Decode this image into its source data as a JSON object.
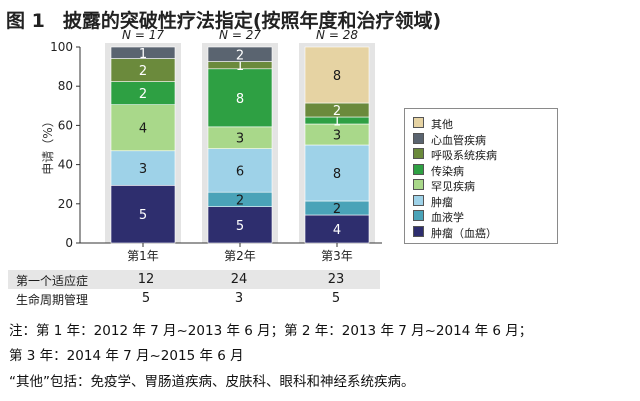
{
  "figure": {
    "label": "图 1",
    "title": "披露的突破性疗法指定(按照年度和治疗领域)"
  },
  "chart_data": {
    "type": "bar",
    "stacked": true,
    "normalized_percent": true,
    "categories": [
      "第1年",
      "第2年",
      "第3年"
    ],
    "n_labels": [
      "N = 17",
      "N = 27",
      "N = 28"
    ],
    "totals": [
      17,
      27,
      28
    ],
    "ylabel": "申请（%）",
    "ylim": [
      0,
      100
    ],
    "yticks": [
      0,
      20,
      40,
      60,
      80,
      100
    ],
    "series": [
      {
        "name": "肿瘤（血癌）",
        "color": "#2e2e6e",
        "values": [
          5,
          5,
          4
        ]
      },
      {
        "name": "血液学",
        "color": "#4aa3b8",
        "values": [
          0,
          2,
          2
        ]
      },
      {
        "name": "肿瘤",
        "color": "#9ed2e8",
        "values": [
          3,
          6,
          8
        ]
      },
      {
        "name": "罕见疾病",
        "color": "#a9d88a",
        "values": [
          4,
          3,
          3
        ]
      },
      {
        "name": "传染病",
        "color": "#2ea043",
        "values": [
          2,
          8,
          1
        ]
      },
      {
        "name": "呼吸系统疾病",
        "color": "#6b8a3c",
        "values": [
          2,
          1,
          2
        ]
      },
      {
        "name": "心血管疾病",
        "color": "#5a6470",
        "values": [
          1,
          2,
          0
        ]
      },
      {
        "name": "其他",
        "color": "#e6d3a3",
        "values": [
          0,
          0,
          8
        ]
      }
    ],
    "legend_position": "right"
  },
  "table": {
    "rows": [
      {
        "label": "第一个适应症",
        "values": [
          "12",
          "24",
          "23"
        ]
      },
      {
        "label": "生命周期管理",
        "values": [
          "5",
          "3",
          "5"
        ]
      }
    ]
  },
  "notes": [
    "注：第 1 年：2012 年 7 月~2013 年 6 月；第 2 年：2013 年 7 月~2014 年 6 月；",
    "第 3 年：2014 年 7 月~2015 年 6 月",
    "“其他”包括：免疫学、胃肠道疾病、皮肤科、眼科和神经系统疾病。"
  ]
}
